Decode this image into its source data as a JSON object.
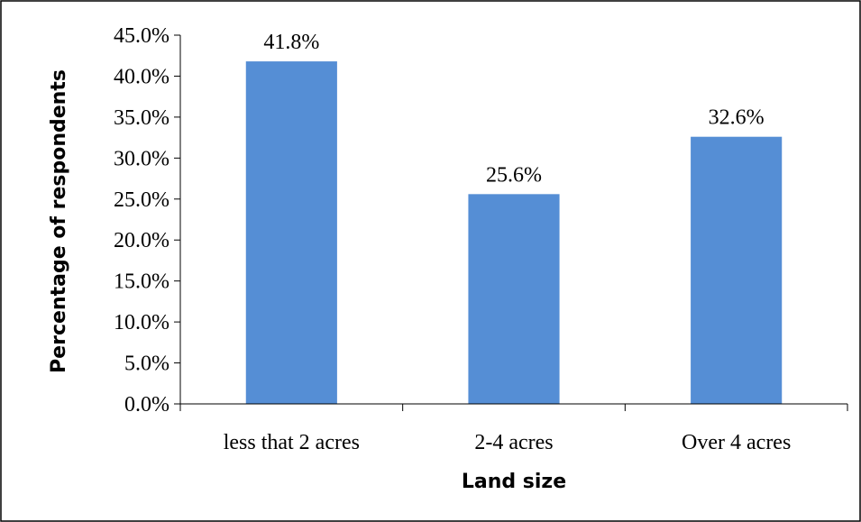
{
  "chart_data": {
    "type": "bar",
    "categories": [
      "less that 2 acres",
      "2-4 acres",
      "Over 4 acres"
    ],
    "values": [
      41.8,
      25.6,
      32.6
    ],
    "data_labels": [
      "41.8%",
      "25.6%",
      "32.6%"
    ],
    "title": "",
    "xlabel": "Land size",
    "ylabel": "Percentage of respondents",
    "ylim": [
      0,
      45
    ],
    "ytick_values": [
      0,
      5,
      10,
      15,
      20,
      25,
      30,
      35,
      40,
      45
    ],
    "ytick_labels": [
      "0.0%",
      "5.0%",
      "10.0%",
      "15.0%",
      "20.0%",
      "25.0%",
      "30.0%",
      "35.0%",
      "40.0%",
      "45.0%"
    ],
    "grid": false,
    "legend": "none",
    "colors": {
      "bar": "#558ED5",
      "axis": "#000000",
      "border": "#000000"
    }
  }
}
